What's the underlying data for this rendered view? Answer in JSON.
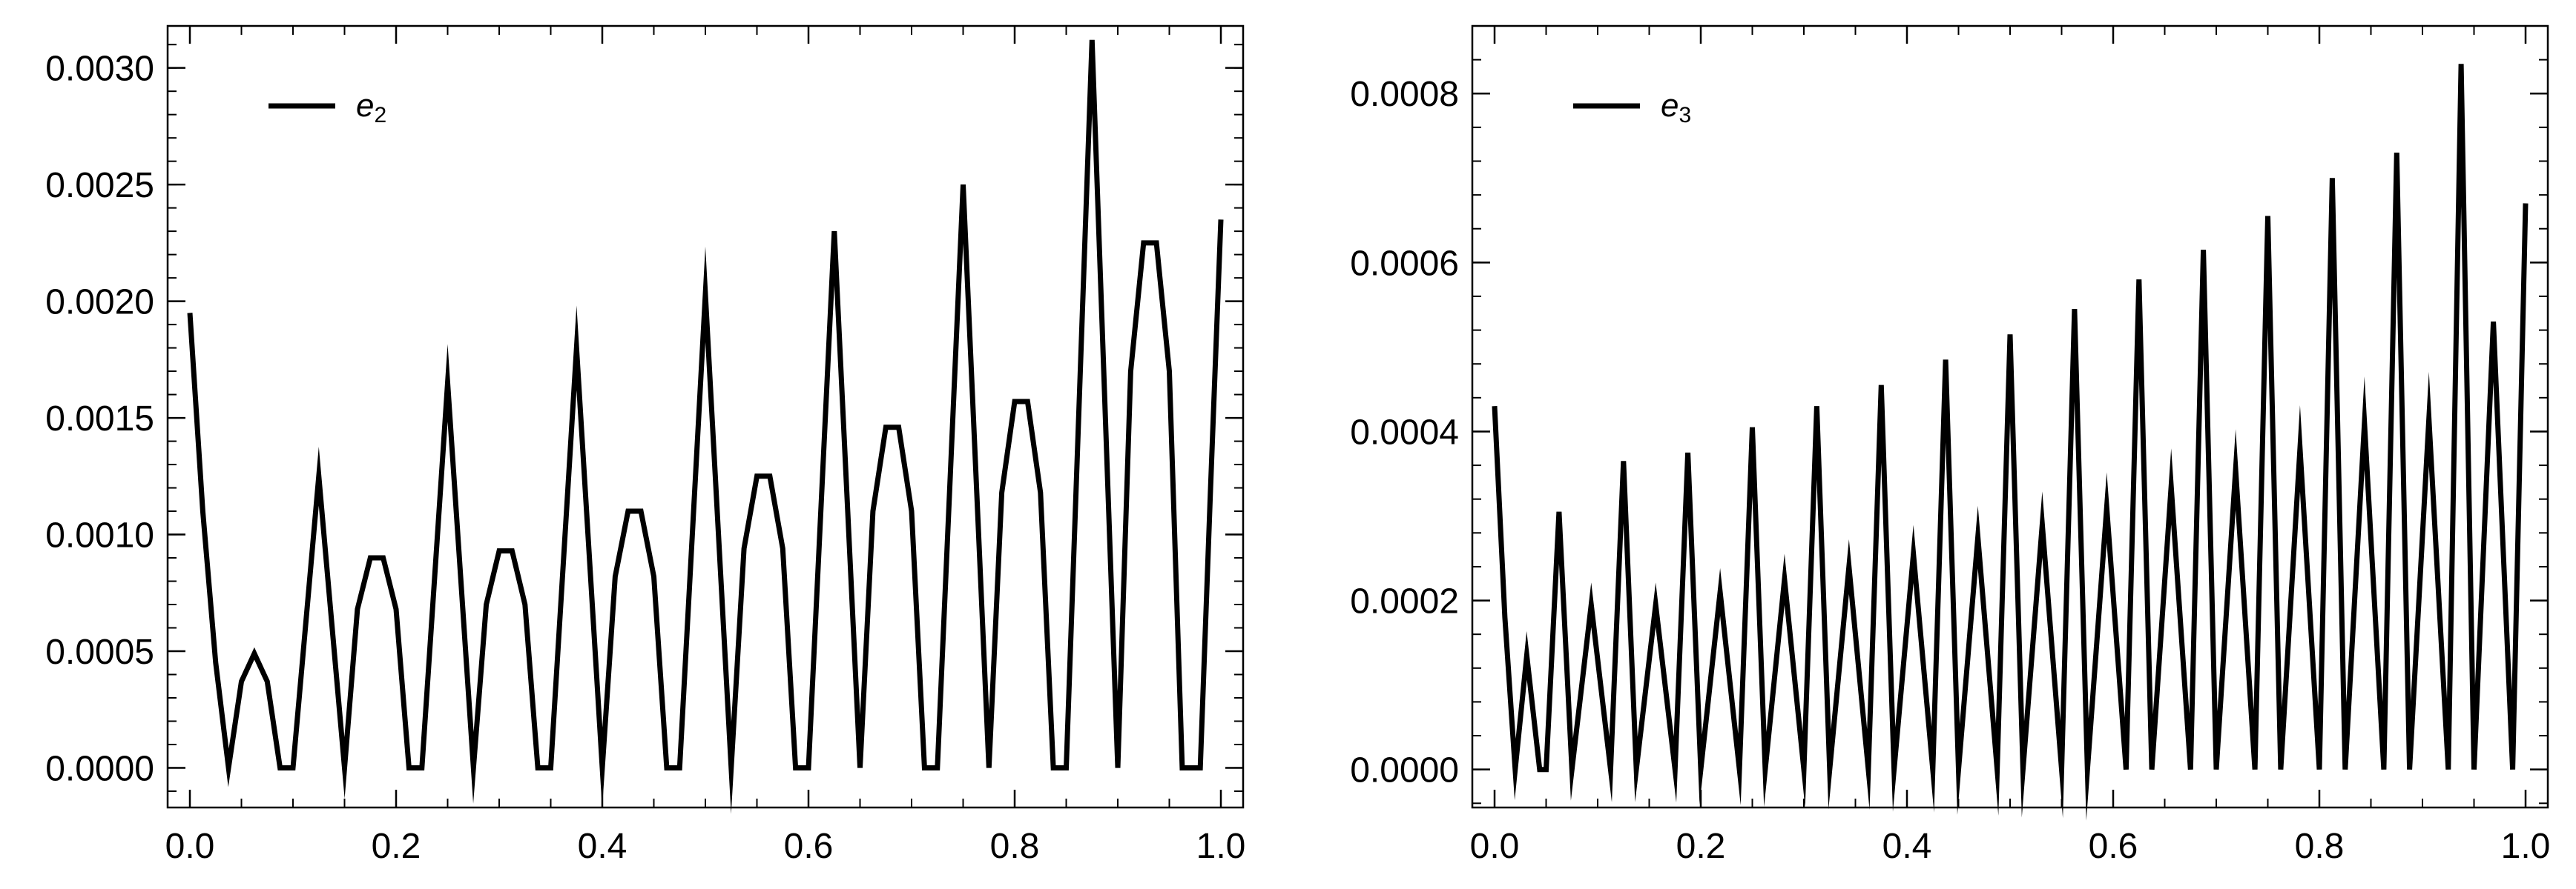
{
  "chart_data": [
    {
      "type": "line",
      "xlim": [
        0,
        1
      ],
      "ylim": [
        -0.00017,
        0.00318
      ],
      "x_ticks": [
        0.0,
        0.2,
        0.4,
        0.6,
        0.8,
        1.0
      ],
      "x_tick_labels": [
        "0.0",
        "0.2",
        "0.4",
        "0.6",
        "0.8",
        "1.0"
      ],
      "y_ticks": [
        0.0,
        0.0005,
        0.001,
        0.0015,
        0.002,
        0.0025,
        0.003
      ],
      "y_tick_labels": [
        "0.0000",
        "0.0005",
        "0.0010",
        "0.0015",
        "0.0020",
        "0.0025",
        "0.0030"
      ],
      "grid": false,
      "legend_position": "top-left",
      "series": [
        {
          "name": "e",
          "name_subscript": "2",
          "color": "#000000",
          "x": [
            0.0,
            0.0125,
            0.025,
            0.0375,
            0.05,
            0.0625,
            0.075,
            0.0875,
            0.1,
            0.125,
            0.15,
            0.1625,
            0.175,
            0.1875,
            0.2,
            0.2125,
            0.225,
            0.25,
            0.275,
            0.2875,
            0.3,
            0.3125,
            0.325,
            0.3375,
            0.35,
            0.375,
            0.4,
            0.4125,
            0.425,
            0.4375,
            0.45,
            0.4625,
            0.475,
            0.5,
            0.525,
            0.5375,
            0.55,
            0.5625,
            0.575,
            0.5875,
            0.6,
            0.625,
            0.65,
            0.6625,
            0.675,
            0.6875,
            0.7,
            0.7125,
            0.725,
            0.75,
            0.775,
            0.7875,
            0.8,
            0.8125,
            0.825,
            0.8375,
            0.85,
            0.875,
            0.9,
            0.9125,
            0.925,
            0.9375,
            0.95,
            0.9625,
            0.975,
            0.98,
            0.99,
            1.0
          ],
          "values": [
            0.00195,
            0.0011,
            0.00045,
            0.0,
            0.00037,
            0.00049,
            0.00037,
            0.0,
            0.0,
            0.00125,
            0.0,
            0.00068,
            0.0009,
            0.0009,
            0.00068,
            0.0,
            0.0,
            0.00165,
            0.0,
            0.0007,
            0.00093,
            0.00093,
            0.0007,
            0.0,
            0.0,
            0.0018,
            0.0,
            0.00082,
            0.0011,
            0.0011,
            0.00082,
            0.0,
            0.0,
            0.00203,
            0.0,
            0.00094,
            0.00125,
            0.00125,
            0.00094,
            0.0,
            0.0,
            0.0023,
            0.0,
            0.0011,
            0.00146,
            0.00146,
            0.0011,
            0.0,
            0.0,
            0.0025,
            0.0,
            0.00118,
            0.00157,
            0.00157,
            0.00118,
            0.0,
            0.0,
            0.00312,
            0.0,
            0.0017,
            0.00225,
            0.00225,
            0.0017,
            0.0,
            0.0,
            0.0,
            0.0012,
            0.00235
          ]
        }
      ]
    },
    {
      "type": "line",
      "xlim": [
        0,
        1
      ],
      "ylim": [
        -4.5e-05,
        0.00088
      ],
      "x_ticks": [
        0.0,
        0.2,
        0.4,
        0.6,
        0.8,
        1.0
      ],
      "x_tick_labels": [
        "0.0",
        "0.2",
        "0.4",
        "0.6",
        "0.8",
        "1.0"
      ],
      "y_ticks": [
        0.0,
        0.0002,
        0.0004,
        0.0006,
        0.0008
      ],
      "y_tick_labels": [
        "0.0000",
        "0.0002",
        "0.0004",
        "0.0006",
        "0.0008"
      ],
      "grid": false,
      "legend_position": "top-left",
      "series": [
        {
          "name": "e",
          "name_subscript": "3",
          "color": "#000000",
          "x": [
            0.0,
            0.01,
            0.02,
            0.03125,
            0.04375,
            0.05,
            0.0625,
            0.075,
            0.09375,
            0.1125,
            0.125,
            0.1375,
            0.15625,
            0.175,
            0.1875,
            0.2,
            0.21875,
            0.2375,
            0.25,
            0.2625,
            0.28125,
            0.3,
            0.3125,
            0.325,
            0.34375,
            0.3625,
            0.375,
            0.3875,
            0.40625,
            0.425,
            0.4375,
            0.45,
            0.46875,
            0.4875,
            0.5,
            0.5125,
            0.53125,
            0.55,
            0.5625,
            0.575,
            0.59375,
            0.6125,
            0.625,
            0.6375,
            0.65625,
            0.675,
            0.6875,
            0.7,
            0.71875,
            0.7375,
            0.75,
            0.7625,
            0.78125,
            0.8,
            0.8125,
            0.825,
            0.84375,
            0.8625,
            0.875,
            0.8875,
            0.90625,
            0.925,
            0.9375,
            0.95,
            0.96875,
            0.9875,
            1.0
          ],
          "values": [
            0.00043,
            0.00018,
            0.0,
            0.000135,
            0.0,
            0.0,
            0.000305,
            0.0,
            0.000195,
            0.0,
            0.000365,
            0.0,
            0.000195,
            0.0,
            0.000375,
            0.0,
            0.00021,
            0.0,
            0.000405,
            0.0,
            0.000225,
            0.0,
            0.00043,
            0.0,
            0.00024,
            0.0,
            0.000455,
            0.0,
            0.000255,
            0.0,
            0.000485,
            0.0,
            0.000275,
            0.0,
            0.000515,
            0.0,
            0.00029,
            0.0,
            0.000545,
            0.0,
            0.00031,
            0.0,
            0.00058,
            0.0,
            0.000335,
            0.0,
            0.000615,
            0.0,
            0.000355,
            0.0,
            0.000655,
            0.0,
            0.00038,
            0.0,
            0.0007,
            0.0,
            0.00041,
            0.0,
            0.00073,
            0.0,
            0.000415,
            0.0,
            0.000835,
            0.0,
            0.00053,
            0.0,
            0.00067
          ]
        }
      ]
    }
  ]
}
